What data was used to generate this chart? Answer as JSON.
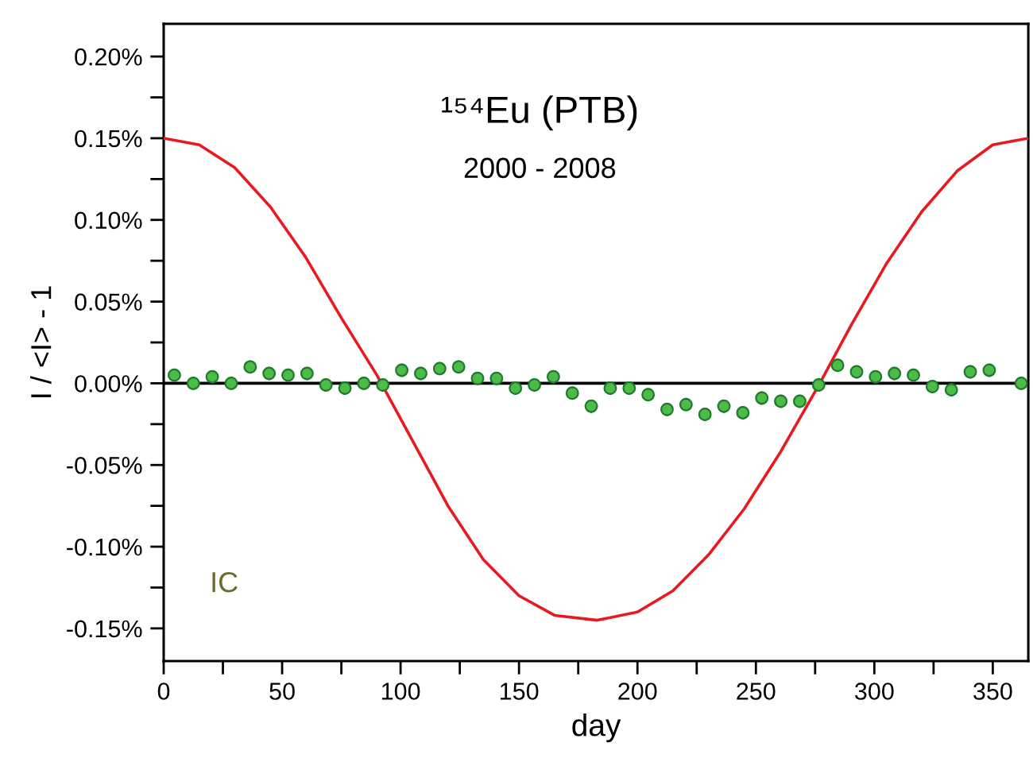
{
  "chart_data": {
    "type": "scatter",
    "xlabel": "day",
    "ylabel": "I / <I> - 1",
    "annotations": [
      "¹⁵⁴Eu (PTB)",
      "2000 - 2008",
      "IC"
    ],
    "xlim": [
      0,
      365
    ],
    "ylim": [
      -0.17,
      0.22
    ],
    "xticks": [
      0,
      {
        "value": 25,
        "label": null
      },
      50,
      {
        "value": 75,
        "label": null
      },
      100,
      {
        "value": 125,
        "label": null
      },
      150,
      {
        "value": 175,
        "label": null
      },
      200,
      {
        "value": 225,
        "label": null
      },
      250,
      {
        "value": 275,
        "label": null
      },
      300,
      {
        "value": 325,
        "label": null
      },
      350
    ],
    "yticks": [
      {
        "value": -0.15,
        "label": "-0.15%"
      },
      {
        "value": -0.125,
        "label": null
      },
      {
        "value": -0.1,
        "label": "-0.10%"
      },
      {
        "value": -0.075,
        "label": null
      },
      {
        "value": -0.05,
        "label": "-0.05%"
      },
      {
        "value": -0.025,
        "label": null
      },
      {
        "value": 0,
        "label": "0.00%"
      },
      {
        "value": 0.025,
        "label": null
      },
      {
        "value": 0.05,
        "label": "0.05%"
      },
      {
        "value": 0.075,
        "label": null
      },
      {
        "value": 0.1,
        "label": "0.10%"
      },
      {
        "value": 0.125,
        "label": null
      },
      {
        "value": 0.15,
        "label": "0.15%"
      },
      {
        "value": 0.175,
        "label": null
      },
      {
        "value": 0.2,
        "label": "0.20%"
      }
    ],
    "grid": false,
    "legend": false,
    "ref_lines": [
      {
        "axis": "y",
        "value": 0,
        "color": "#000000"
      }
    ],
    "series": [
      {
        "type": "line",
        "color": "#e8191f",
        "marker": "none",
        "line_style": "solid",
        "x": [
          0,
          15,
          30,
          45,
          60,
          75,
          90,
          105,
          120,
          135,
          150,
          165,
          183,
          200,
          215,
          230,
          245,
          260,
          277,
          290,
          305,
          320,
          335,
          350,
          365
        ],
        "values": [
          0.15,
          0.146,
          0.132,
          0.108,
          0.077,
          0.04,
          0.005,
          -0.035,
          -0.075,
          -0.108,
          -0.13,
          -0.142,
          -0.145,
          -0.14,
          -0.127,
          -0.105,
          -0.077,
          -0.043,
          0.0,
          0.035,
          0.073,
          0.105,
          0.13,
          0.146,
          0.15
        ]
      },
      {
        "color": "#4cbb47",
        "marker": "circle",
        "x": [
          4.5,
          12.5,
          20.5,
          28.5,
          36.5,
          44.5,
          52.5,
          60.5,
          68.5,
          76.5,
          84.5,
          92.5,
          100.5,
          108.5,
          116.5,
          124.5,
          132.5,
          140.5,
          148.5,
          156.5,
          164.5,
          172.5,
          180.5,
          188.5,
          196.5,
          204.5,
          212.5,
          220.5,
          228.5,
          236.5,
          244.5,
          252.5,
          260.5,
          268.5,
          276.5,
          284.5,
          292.5,
          300.5,
          308.5,
          316.5,
          324.5,
          332.5,
          340.5,
          348.5,
          362
        ],
        "values": [
          0.005,
          0.0,
          0.004,
          0.0,
          0.01,
          0.006,
          0.005,
          0.006,
          -0.001,
          -0.003,
          0.0,
          -0.001,
          0.008,
          0.006,
          0.009,
          0.01,
          0.003,
          0.003,
          -0.003,
          -0.001,
          0.004,
          -0.006,
          -0.014,
          -0.003,
          -0.003,
          -0.007,
          -0.016,
          -0.013,
          -0.019,
          -0.014,
          -0.018,
          -0.009,
          -0.011,
          -0.011,
          -0.001,
          0.011,
          0.007,
          0.004,
          0.006,
          0.005,
          -0.002,
          -0.004,
          0.007,
          0.008,
          0.0
        ],
        "errors": [
          0.004,
          0.004,
          0.004,
          0.004,
          0.004,
          0.004,
          0.004,
          0.004,
          0.004,
          0.004,
          0.004,
          0.004,
          0.004,
          0.004,
          0.004,
          0.004,
          0.004,
          0.004,
          0.004,
          0.004,
          0.004,
          0.004,
          0.004,
          0.004,
          0.004,
          0.004,
          0.004,
          0.004,
          0.004,
          0.004,
          0.004,
          0.004,
          0.004,
          0.004,
          0.004,
          0.004,
          0.004,
          0.004,
          0.004,
          0.004,
          0.004,
          0.004,
          0.004,
          0.004,
          0.004
        ]
      }
    ]
  }
}
